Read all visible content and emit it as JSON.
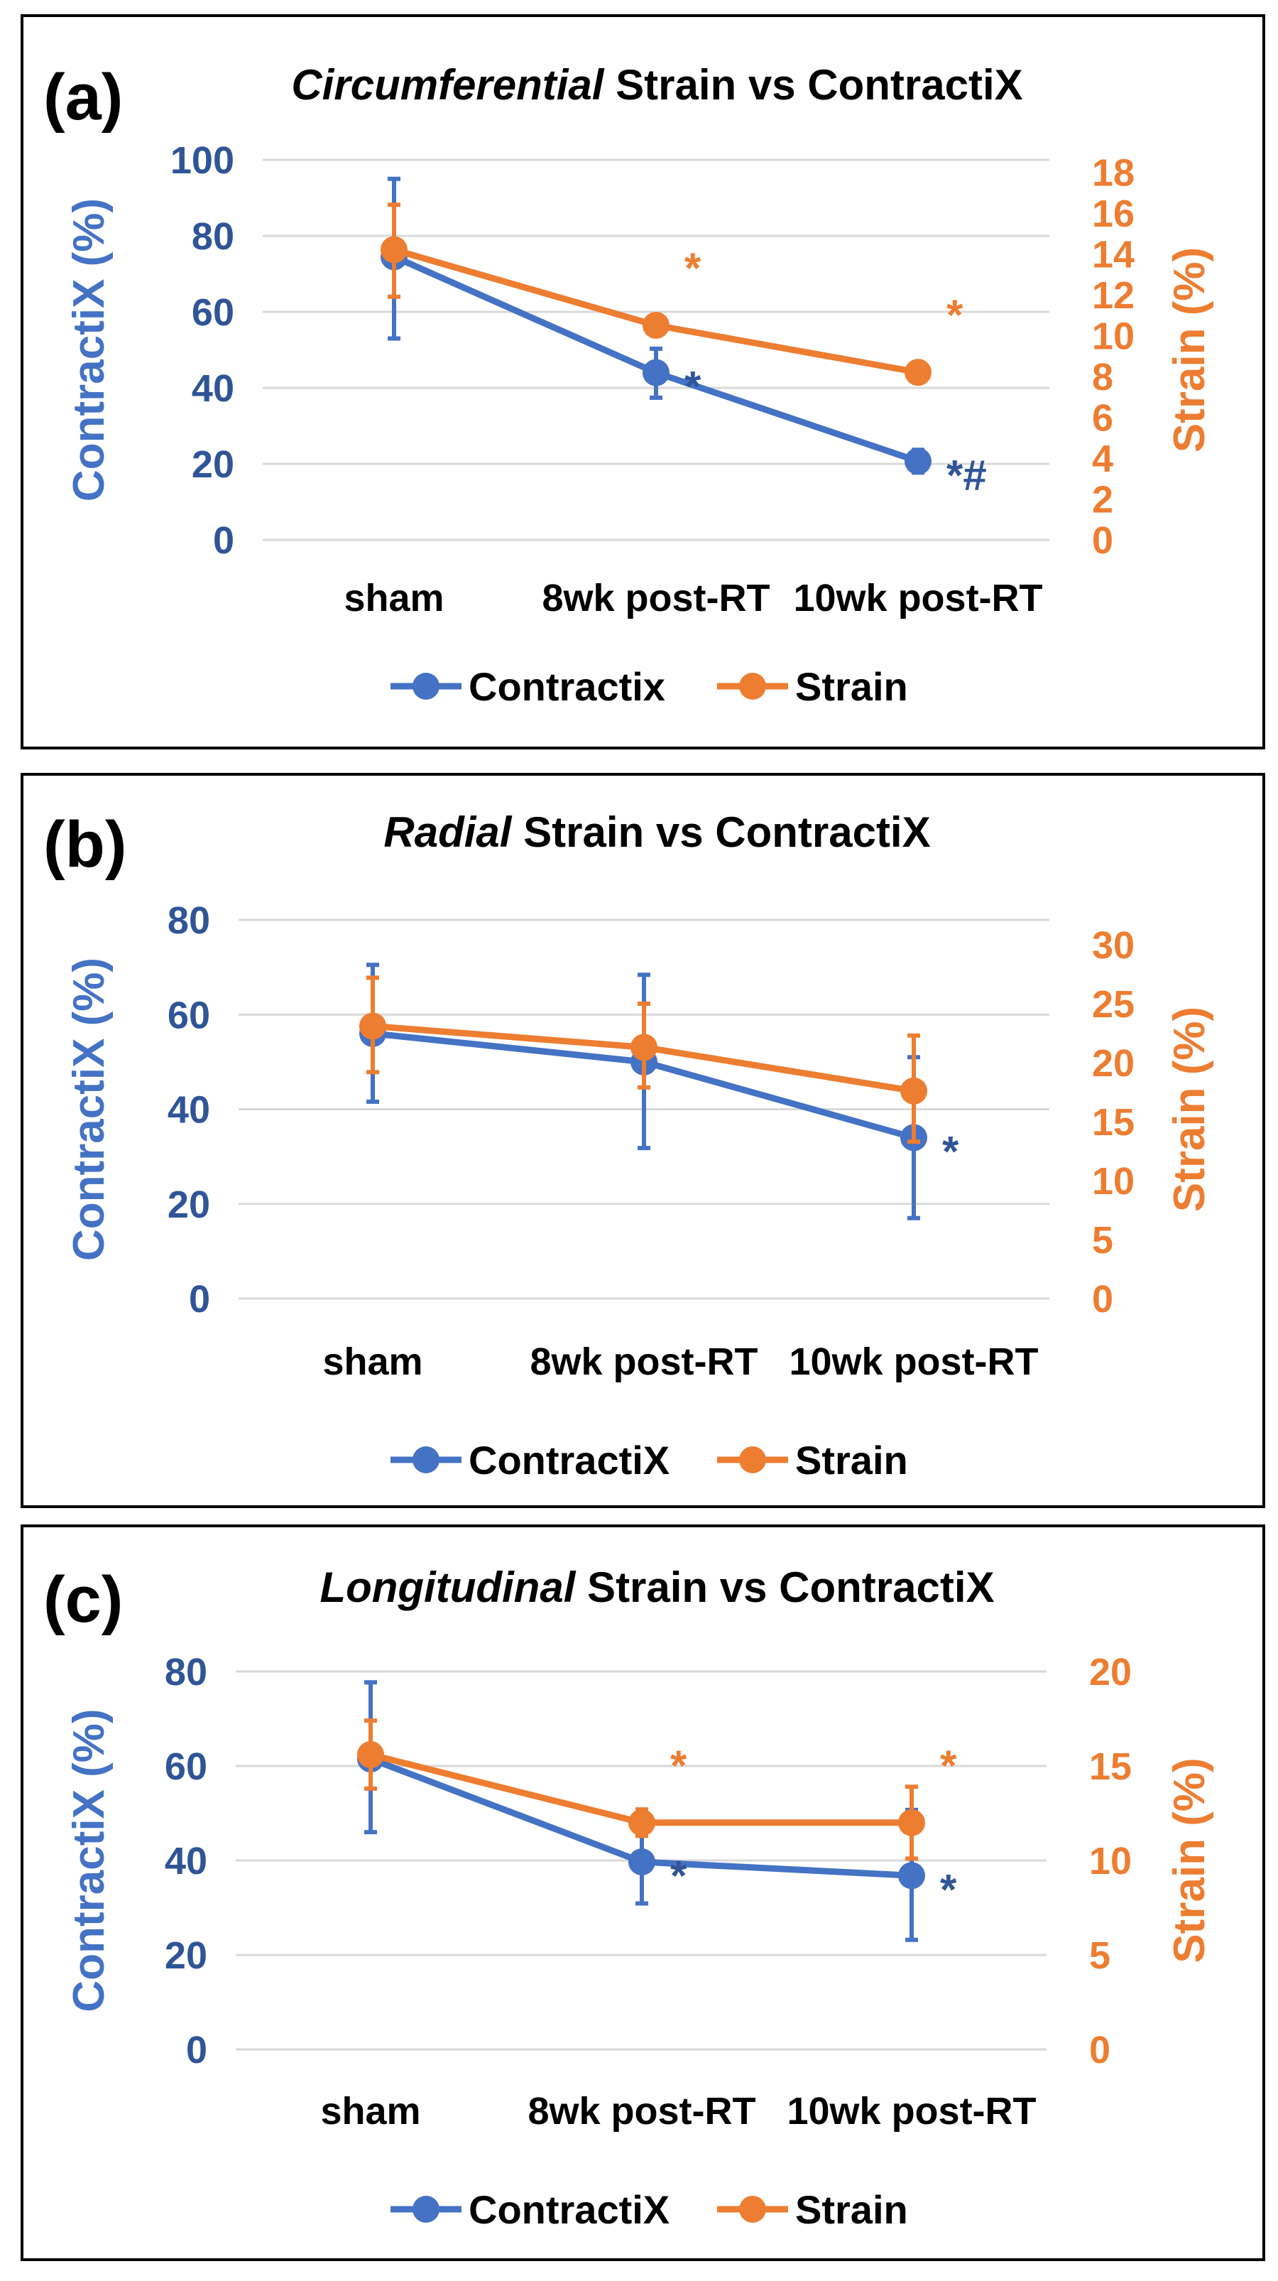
{
  "colors": {
    "contractix": "#4472C4",
    "strain": "#ED7D31",
    "left_axis_text": "#2F5597",
    "grid": "#D9D9D9"
  },
  "chart_data": [
    {
      "type": "line",
      "panel_label": "(a)",
      "title_italic": "Circumferential",
      "title_rest": " Strain vs ContractiX",
      "categories": [
        "sham",
        "8wk post-RT",
        "10wk post-RT"
      ],
      "ylabel": "ContractiX (%)",
      "y2label": "Strain (%)",
      "ylim": [
        0,
        100
      ],
      "yticks": [
        0,
        20,
        40,
        60,
        80,
        100
      ],
      "y2lim": [
        0,
        18.6
      ],
      "y2ticks": [
        0,
        2,
        4,
        6,
        8,
        10,
        12,
        14,
        16,
        18
      ],
      "grid": true,
      "legend_position": "bottom",
      "series": [
        {
          "name": "Contractix",
          "axis": "left",
          "values": [
            74.5,
            44,
            20.7
          ],
          "err_low": [
            53,
            37.4,
            17.7
          ],
          "err_high": [
            95,
            50.3,
            23.7
          ]
        },
        {
          "name": "Strain",
          "axis": "right",
          "values": [
            14.2,
            10.5,
            8.2
          ],
          "err_low": [
            11.9,
            10.1,
            7.9
          ],
          "err_high": [
            16.4,
            10.9,
            8.5
          ]
        }
      ],
      "annotations": [
        {
          "text": "*",
          "series": "Strain",
          "category": "8wk post-RT"
        },
        {
          "text": "*",
          "series": "Strain",
          "category": "10wk post-RT"
        },
        {
          "text": "*",
          "series": "Contractix",
          "category": "8wk post-RT"
        },
        {
          "text": "*#",
          "series": "Contractix",
          "category": "10wk post-RT"
        }
      ]
    },
    {
      "type": "line",
      "panel_label": "(b)",
      "title_italic": "Radial",
      "title_rest": " Strain vs ContractiX",
      "categories": [
        "sham",
        "8wk post-RT",
        "10wk post-RT"
      ],
      "ylabel": "ContractiX (%)",
      "y2label": "Strain (%)",
      "ylim": [
        0,
        80
      ],
      "yticks": [
        0,
        20,
        40,
        60,
        80
      ],
      "y2lim": [
        0,
        32.1
      ],
      "y2ticks": [
        0,
        5,
        10,
        15,
        20,
        25,
        30
      ],
      "grid": true,
      "legend_position": "bottom",
      "series": [
        {
          "name": "ContractiX",
          "axis": "left",
          "values": [
            56,
            50,
            34
          ],
          "err_low": [
            41.6,
            31.8,
            17
          ],
          "err_high": [
            70.5,
            68.4,
            51
          ]
        },
        {
          "name": "Strain",
          "axis": "right",
          "values": [
            23.1,
            21.3,
            17.6
          ],
          "err_low": [
            19.2,
            17.9,
            13.3
          ],
          "err_high": [
            27.2,
            25,
            22.3
          ]
        }
      ],
      "annotations": [
        {
          "text": "*",
          "series": "ContractiX",
          "category": "10wk post-RT"
        }
      ]
    },
    {
      "type": "line",
      "panel_label": "(c)",
      "title_italic": "Longitudinal",
      "title_rest": " Strain vs ContractiX",
      "categories": [
        "sham",
        "8wk post-RT",
        "10wk post-RT"
      ],
      "ylabel": "ContractiX (%)",
      "y2label": "Strain (%)",
      "ylim": [
        0,
        80
      ],
      "yticks": [
        0,
        20,
        40,
        60,
        80
      ],
      "y2lim": [
        0,
        20
      ],
      "y2ticks": [
        0,
        5,
        10,
        15,
        20
      ],
      "grid": true,
      "legend_position": "bottom",
      "series": [
        {
          "name": "ContractiX",
          "axis": "left",
          "values": [
            61.5,
            39.7,
            36.8
          ],
          "err_low": [
            46,
            30.9,
            23.2
          ],
          "err_high": [
            77.7,
            48.5,
            50.7
          ]
        },
        {
          "name": "Strain",
          "axis": "right",
          "values": [
            15.6,
            12,
            12
          ],
          "err_low": [
            13.8,
            11.3,
            10.1
          ],
          "err_high": [
            17.4,
            12.7,
            13.9
          ]
        }
      ],
      "annotations": [
        {
          "text": "*",
          "series": "Strain",
          "category": "8wk post-RT"
        },
        {
          "text": "*",
          "series": "Strain",
          "category": "10wk post-RT"
        },
        {
          "text": "*",
          "series": "ContractiX",
          "category": "8wk post-RT"
        },
        {
          "text": "*",
          "series": "ContractiX",
          "category": "10wk post-RT"
        }
      ]
    }
  ]
}
